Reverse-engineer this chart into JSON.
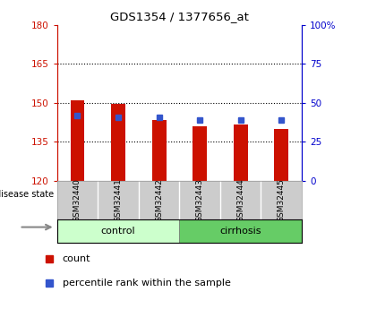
{
  "title": "GDS1354 / 1377656_at",
  "samples": [
    "GSM32440",
    "GSM32441",
    "GSM32442",
    "GSM32443",
    "GSM32444",
    "GSM32445"
  ],
  "bar_base": 120,
  "bar_tops": [
    151.0,
    149.5,
    143.5,
    141.0,
    141.5,
    140.0
  ],
  "percentile_values": [
    145.0,
    144.5,
    144.5,
    143.5,
    143.5,
    143.5
  ],
  "ylim_left": [
    120,
    180
  ],
  "yticks_left": [
    120,
    135,
    150,
    165,
    180
  ],
  "ylim_right": [
    0,
    100
  ],
  "yticks_right": [
    0,
    25,
    50,
    75,
    100
  ],
  "ytick_right_labels": [
    "0",
    "25",
    "50",
    "75",
    "100%"
  ],
  "groups": [
    {
      "label": "control",
      "indices": [
        0,
        1,
        2
      ],
      "color": "#ccffcc"
    },
    {
      "label": "cirrhosis",
      "indices": [
        3,
        4,
        5
      ],
      "color": "#66cc66"
    }
  ],
  "bar_color": "#cc1100",
  "blue_color": "#3355cc",
  "title_color": "#000000",
  "left_axis_color": "#cc1100",
  "right_axis_color": "#0000cc",
  "grid_color": "#000000",
  "bg_color": "#ffffff",
  "tick_label_area_color": "#cccccc",
  "disease_state_label": "disease state",
  "legend_count_label": "count",
  "legend_percentile_label": "percentile rank within the sample",
  "bar_width": 0.35
}
